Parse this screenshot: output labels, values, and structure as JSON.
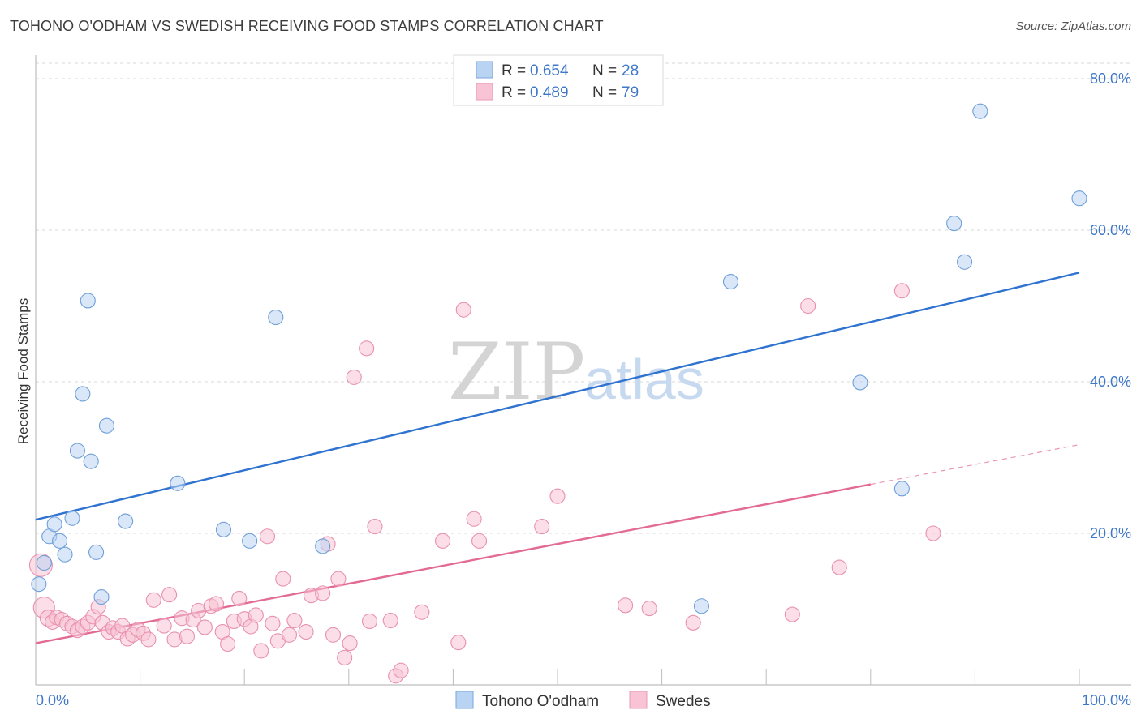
{
  "title": "TOHONO O'ODHAM VS SWEDISH RECEIVING FOOD STAMPS CORRELATION CHART",
  "source": "Source: ZipAtlas.com",
  "watermark": {
    "zip": "ZIP",
    "atlas": "atlas"
  },
  "colors": {
    "blue": "#3f78c9",
    "blue_fill": "#b9d3f3",
    "blue_line": "#2f73d0",
    "pink": "#e06b96",
    "pink_fill": "#f8c3d4",
    "pink_line": "#e36a95",
    "grid": "#d8d8d8",
    "axis_text": "#3f78c9"
  },
  "chart_data": {
    "type": "scatter",
    "title": "TOHONO O'ODHAM VS SWEDISH RECEIVING FOOD STAMPS CORRELATION CHART",
    "xlabel": "",
    "ylabel": "Receiving Food Stamps",
    "xlim": [
      0,
      100
    ],
    "ylim": [
      0,
      80
    ],
    "x_tick_labels": [
      "0.0%",
      "100.0%"
    ],
    "y_ticks": [
      20,
      40,
      60,
      80
    ],
    "y_tick_labels": [
      "20.0%",
      "40.0%",
      "60.0%",
      "80.0%"
    ],
    "legend": {
      "series": [
        {
          "name": "Tohono O'odham",
          "r_label": "R =",
          "r": "0.654",
          "n_label": "N =",
          "n": "28"
        },
        {
          "name": "Swedes",
          "r_label": "R =",
          "r": "0.489",
          "n_label": "N =",
          "n": "79"
        }
      ]
    },
    "series": [
      {
        "name": "Tohono O'odham",
        "points": [
          [
            0.3,
            13.3
          ],
          [
            0.8,
            16.1
          ],
          [
            1.3,
            19.6
          ],
          [
            1.8,
            21.2
          ],
          [
            2.3,
            19.0
          ],
          [
            2.8,
            17.2
          ],
          [
            3.5,
            22.0
          ],
          [
            4.0,
            30.9
          ],
          [
            4.5,
            38.4
          ],
          [
            5.0,
            50.7
          ],
          [
            5.3,
            29.5
          ],
          [
            5.8,
            17.5
          ],
          [
            6.3,
            11.6
          ],
          [
            6.8,
            34.2
          ],
          [
            8.6,
            21.6
          ],
          [
            13.6,
            26.6
          ],
          [
            18.0,
            20.5
          ],
          [
            20.5,
            19.0
          ],
          [
            23.0,
            48.5
          ],
          [
            27.5,
            18.3
          ],
          [
            63.8,
            10.4
          ],
          [
            66.6,
            53.2
          ],
          [
            79.0,
            39.9
          ],
          [
            83.0,
            25.9
          ],
          [
            88.0,
            60.9
          ],
          [
            89.0,
            55.8
          ],
          [
            90.5,
            75.7
          ],
          [
            100.0,
            64.2
          ]
        ],
        "sizes": [
          18,
          18,
          18,
          18,
          18,
          18,
          18,
          18,
          18,
          18,
          18,
          18,
          18,
          18,
          18,
          18,
          18,
          18,
          18,
          18,
          18,
          18,
          18,
          18,
          18,
          18,
          18,
          18
        ],
        "trend": {
          "x": [
            0,
            100
          ],
          "y": [
            21.8,
            54.4
          ],
          "dashed_from": null
        }
      },
      {
        "name": "Swedes",
        "points": [
          [
            0.5,
            15.8
          ],
          [
            0.8,
            10.2
          ],
          [
            1.2,
            8.8
          ],
          [
            1.6,
            8.3
          ],
          [
            2.0,
            8.9
          ],
          [
            2.5,
            8.6
          ],
          [
            3.0,
            8.1
          ],
          [
            3.5,
            7.7
          ],
          [
            4.0,
            7.2
          ],
          [
            4.5,
            7.7
          ],
          [
            5.0,
            8.2
          ],
          [
            5.5,
            9.0
          ],
          [
            6.0,
            10.3
          ],
          [
            6.4,
            8.2
          ],
          [
            7.0,
            7.0
          ],
          [
            7.4,
            7.5
          ],
          [
            7.9,
            7.0
          ],
          [
            8.3,
            7.8
          ],
          [
            8.8,
            6.1
          ],
          [
            9.3,
            6.6
          ],
          [
            9.8,
            7.3
          ],
          [
            10.3,
            6.8
          ],
          [
            10.8,
            6.0
          ],
          [
            11.3,
            11.2
          ],
          [
            12.3,
            7.8
          ],
          [
            12.8,
            11.9
          ],
          [
            13.3,
            6.0
          ],
          [
            14.0,
            8.8
          ],
          [
            14.5,
            6.4
          ],
          [
            15.1,
            8.6
          ],
          [
            15.6,
            9.8
          ],
          [
            16.2,
            7.6
          ],
          [
            16.8,
            10.4
          ],
          [
            17.3,
            10.7
          ],
          [
            17.9,
            7.0
          ],
          [
            18.4,
            5.4
          ],
          [
            19.0,
            8.4
          ],
          [
            19.5,
            11.4
          ],
          [
            20.0,
            8.7
          ],
          [
            20.6,
            7.7
          ],
          [
            21.1,
            9.2
          ],
          [
            21.6,
            4.5
          ],
          [
            22.2,
            19.6
          ],
          [
            22.7,
            8.1
          ],
          [
            23.2,
            5.8
          ],
          [
            23.7,
            14.0
          ],
          [
            24.3,
            6.6
          ],
          [
            24.8,
            8.5
          ],
          [
            25.9,
            7.0
          ],
          [
            26.4,
            11.8
          ],
          [
            27.5,
            12.1
          ],
          [
            28.0,
            18.6
          ],
          [
            28.5,
            6.6
          ],
          [
            29.0,
            14.0
          ],
          [
            29.6,
            3.6
          ],
          [
            30.1,
            5.5
          ],
          [
            31.7,
            44.4
          ],
          [
            32.0,
            8.4
          ],
          [
            32.5,
            20.9
          ],
          [
            34.0,
            8.5
          ],
          [
            34.5,
            1.2
          ],
          [
            35.0,
            1.9
          ],
          [
            37.0,
            9.6
          ],
          [
            39.0,
            19.0
          ],
          [
            40.5,
            5.6
          ],
          [
            41.0,
            49.5
          ],
          [
            42.0,
            21.9
          ],
          [
            42.5,
            19.0
          ],
          [
            48.5,
            20.9
          ],
          [
            50.0,
            24.9
          ],
          [
            56.5,
            10.5
          ],
          [
            58.8,
            10.1
          ],
          [
            63.0,
            8.2
          ],
          [
            72.5,
            9.3
          ],
          [
            74.0,
            50.0
          ],
          [
            77.0,
            15.5
          ],
          [
            83.0,
            52.0
          ],
          [
            86.0,
            20.0
          ],
          [
            30.5,
            40.6
          ]
        ],
        "sizes": [
          28,
          26,
          20,
          18,
          18,
          18,
          18,
          18,
          18,
          18,
          18,
          18,
          18,
          18,
          18,
          18,
          18,
          18,
          18,
          18,
          18,
          18,
          18,
          18,
          18,
          18,
          18,
          18,
          18,
          18,
          18,
          18,
          18,
          18,
          18,
          18,
          18,
          18,
          18,
          18,
          18,
          18,
          18,
          18,
          18,
          18,
          18,
          18,
          18,
          18,
          18,
          18,
          18,
          18,
          18,
          18,
          18,
          18,
          18,
          18,
          18,
          18,
          18,
          18,
          18,
          18,
          18,
          18,
          18,
          18,
          18,
          18,
          18,
          18,
          18,
          18,
          18,
          18,
          18
        ],
        "trend": {
          "x": [
            0,
            100
          ],
          "y": [
            5.5,
            31.7
          ],
          "dashed_from": 80
        }
      }
    ]
  }
}
